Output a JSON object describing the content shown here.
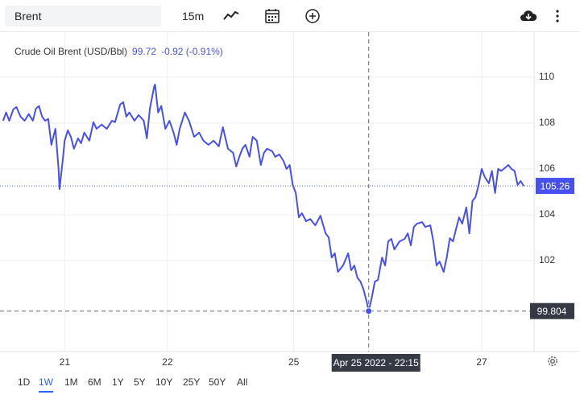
{
  "toolbar": {
    "symbol": "Brent",
    "interval": "15m"
  },
  "chart_data": {
    "type": "line",
    "title": "Crude Oil Brent (USD/Bbl)",
    "legend_value": 99.72,
    "legend_change": "-0.92 (-0.91%)",
    "series": [
      {
        "color": "#4650ee",
        "x": [
          20.4,
          20.43,
          20.46,
          20.5,
          20.53,
          20.57,
          20.61,
          20.65,
          20.69,
          20.72,
          20.75,
          20.78,
          20.81,
          20.84,
          20.87,
          20.91,
          20.94,
          20.95,
          20.98,
          21.0,
          21.03,
          21.06,
          21.09,
          21.13,
          21.16,
          21.19,
          21.24,
          21.28,
          21.31,
          21.36,
          21.41,
          21.46,
          21.49,
          21.54,
          21.57,
          21.6,
          21.63,
          21.68,
          21.72,
          21.77,
          21.8,
          21.83,
          21.87,
          21.88,
          21.91,
          21.94,
          21.98,
          22.02,
          22.06,
          22.09,
          22.12,
          22.17,
          22.21,
          22.26,
          22.31,
          22.35,
          22.4,
          22.45,
          22.5,
          22.54,
          22.59,
          22.64,
          22.67,
          22.7,
          22.73,
          22.76,
          22.8,
          22.83,
          22.87,
          22.91,
          22.94,
          22.97,
          23.02,
          23.05,
          23.09,
          23.13,
          23.16,
          23.19,
          23.22,
          23.25,
          23.28,
          23.31,
          23.35,
          23.39,
          23.44,
          23.49,
          23.54,
          23.57,
          23.6,
          23.63,
          23.66,
          23.71,
          23.76,
          23.79,
          23.82,
          23.85,
          23.88,
          23.91,
          23.94,
          23.96,
          23.99,
          24.02,
          24.05,
          24.09,
          24.12,
          24.15,
          24.18,
          24.21,
          24.26,
          24.31,
          24.34,
          24.37,
          24.4,
          24.43,
          24.48,
          24.51,
          24.56,
          24.59,
          24.62,
          24.65,
          24.69,
          24.72,
          24.75,
          24.78,
          24.81,
          24.84,
          24.87,
          24.91,
          24.94,
          24.97,
          25.0,
          25.03,
          25.06,
          25.09,
          25.13,
          25.16,
          25.19,
          25.22,
          25.25,
          25.28,
          25.32,
          25.35,
          25.38,
          25.41,
          25.44,
          25.47
        ],
        "values": [
          108.1,
          108.46,
          108.1,
          108.6,
          108.7,
          108.28,
          108.1,
          108.39,
          108.1,
          108.63,
          108.74,
          108.28,
          108.1,
          108.18,
          107.05,
          107.75,
          106.0,
          105.12,
          106.35,
          107.23,
          107.68,
          107.4,
          106.88,
          107.33,
          107.12,
          107.58,
          107.23,
          108.04,
          107.75,
          107.93,
          107.75,
          108.1,
          108.04,
          108.81,
          108.91,
          108.28,
          108.46,
          108.1,
          108.35,
          108.1,
          107.33,
          108.63,
          109.58,
          109.68,
          108.46,
          108.74,
          107.75,
          108.1,
          107.58,
          107.05,
          107.75,
          108.46,
          108.1,
          107.4,
          107.58,
          107.23,
          107.05,
          107.23,
          106.98,
          107.82,
          106.88,
          106.7,
          106.1,
          106.53,
          106.88,
          107.05,
          106.53,
          107.4,
          107.23,
          106.17,
          106.7,
          106.88,
          106.77,
          106.53,
          106.63,
          106.35,
          106.0,
          106.17,
          105.3,
          104.95,
          103.89,
          104.07,
          103.72,
          103.82,
          103.54,
          103.96,
          103.19,
          103.02,
          102.14,
          102.32,
          101.51,
          101.79,
          102.32,
          101.58,
          101.79,
          101.26,
          101.09,
          100.74,
          100.21,
          99.8,
          100.39,
          101.09,
          101.16,
          102.14,
          101.79,
          102.84,
          102.95,
          102.49,
          102.84,
          102.95,
          103.19,
          102.67,
          103.47,
          103.61,
          103.68,
          103.47,
          103.54,
          102.84,
          101.79,
          101.96,
          101.51,
          102.14,
          102.98,
          102.84,
          103.37,
          103.89,
          103.61,
          104.32,
          103.19,
          104.6,
          104.77,
          105.3,
          106.0,
          105.65,
          105.37,
          105.91,
          104.95,
          106.0,
          105.91,
          106.02,
          106.17,
          106.0,
          105.91,
          105.3,
          105.47,
          105.26
        ]
      }
    ],
    "xlim": [
      20.37,
      25.57
    ],
    "xticks": [
      21,
      22,
      {
        "value": 23.23,
        "label": "25"
      },
      {
        "value": 25.06,
        "label": "27"
      }
    ],
    "ylim": [
      98.04,
      111.96
    ],
    "yticks": [
      102,
      104,
      106,
      108,
      110
    ],
    "grid": true,
    "last_price": 105.26,
    "crosshair": {
      "x": 23.96,
      "x_label": "Apr 25 2022 - 22:15",
      "y": 99.804
    }
  },
  "ranges": [
    "1D",
    "1W",
    "1M",
    "6M",
    "1Y",
    "5Y",
    "10Y",
    "25Y",
    "50Y",
    "All"
  ],
  "selected_range_index": 1
}
